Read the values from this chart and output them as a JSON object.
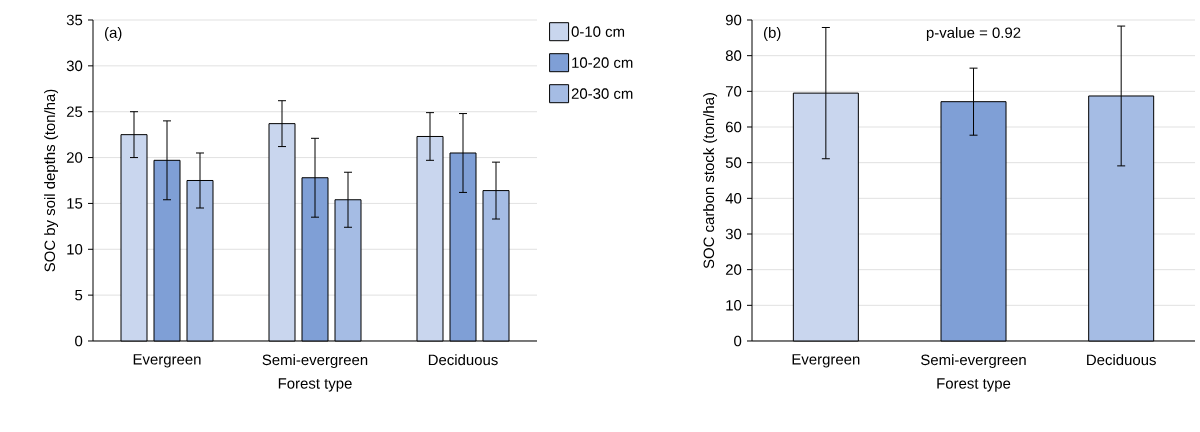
{
  "chart_data": [
    {
      "type": "bar",
      "xlabel": "Forest type",
      "ylabel": "SOC by soil depths (ton/ha)",
      "annotations": [
        "(a)"
      ],
      "categories": [
        "Evergreen",
        "Semi-evergreen",
        "Deciduous"
      ],
      "series": [
        {
          "name": "0-10 cm",
          "color": "#c9d6ee",
          "values": [
            22.5,
            23.7,
            22.3
          ],
          "errors": [
            2.5,
            2.5,
            2.6
          ]
        },
        {
          "name": "10-20 cm",
          "color": "#7f9fd6",
          "values": [
            19.7,
            17.8,
            20.5
          ],
          "errors": [
            4.3,
            4.3,
            4.3
          ]
        },
        {
          "name": "20-30 cm",
          "color": "#a5bce4",
          "values": [
            17.5,
            15.4,
            16.4
          ],
          "errors": [
            3.0,
            3.0,
            3.1
          ]
        }
      ],
      "ylim": [
        0,
        35
      ],
      "yticks": [
        0,
        5,
        10,
        15,
        20,
        25,
        30,
        35
      ],
      "grid": "y",
      "legend": "right"
    },
    {
      "type": "bar",
      "xlabel": "Forest type",
      "ylabel": "SOC carbon stock (ton/ha)",
      "annotations": [
        "(b)",
        "p-value = 0.92"
      ],
      "categories": [
        "Evergreen",
        "Semi-evergreen",
        "Deciduous"
      ],
      "values": [
        69.5,
        67.1,
        68.7
      ],
      "errors": [
        18.4,
        9.4,
        19.6
      ],
      "colors": [
        "#c9d6ee",
        "#7f9fd6",
        "#a5bce4"
      ],
      "ylim": [
        0,
        90
      ],
      "yticks": [
        0,
        10,
        20,
        30,
        40,
        50,
        60,
        70,
        80,
        90
      ],
      "grid": "y"
    }
  ]
}
